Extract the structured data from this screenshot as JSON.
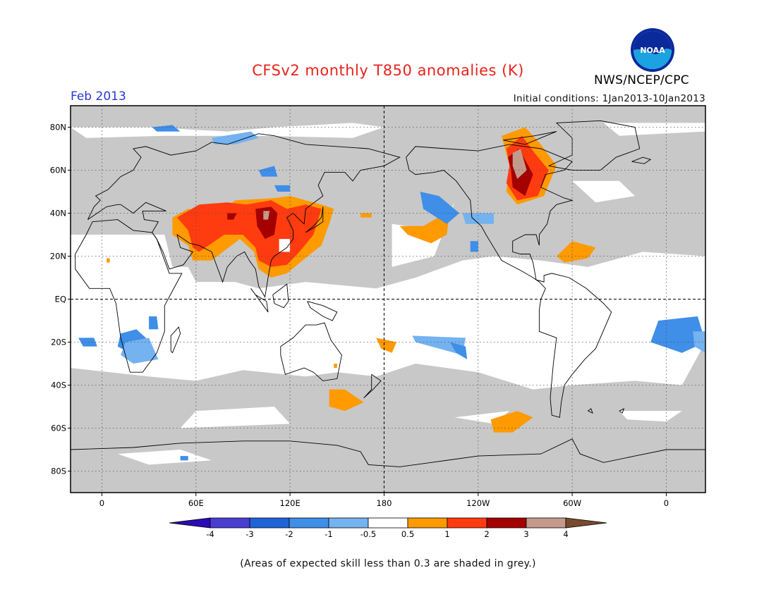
{
  "title": "CFSv2 monthly T850 anomalies (K)",
  "valid_period": "Feb 2013",
  "initial_conditions": "Initial conditions: 1Jan2013-10Jan2013",
  "agency": "NWS/NCEP/CPC",
  "logo_text": "NOAA",
  "footnote": "(Areas of expected skill less than 0.3 are shaded in grey.)",
  "map": {
    "lon_labels": [
      "0",
      "60E",
      "120E",
      "180",
      "120W",
      "60W",
      "0"
    ],
    "lat_labels": [
      "80N",
      "60N",
      "40N",
      "20N",
      "EQ",
      "20S",
      "40S",
      "60S",
      "80S"
    ],
    "lon_range": [
      -20,
      385
    ],
    "lat_range": [
      -90,
      90
    ],
    "colors": {
      "low_skill_grey": "#c8c8c8",
      "frame": "#000000",
      "grid": "#555555"
    }
  },
  "colorbar": {
    "tick_labels": [
      "-4",
      "-3",
      "-2",
      "-1",
      "-0.5",
      "0.5",
      "1",
      "2",
      "3",
      "4"
    ],
    "bins": [
      {
        "color": "#2b0bb5"
      },
      {
        "color": "#4a3ed1"
      },
      {
        "color": "#1f63d6"
      },
      {
        "color": "#3f8ee8"
      },
      {
        "color": "#74b2f0"
      },
      {
        "color": "#ffffff"
      },
      {
        "color": "#ff9a00"
      },
      {
        "color": "#ff3b0f"
      },
      {
        "color": "#a40000"
      },
      {
        "color": "#c49a8c"
      },
      {
        "color": "#7a4a2e"
      }
    ]
  }
}
